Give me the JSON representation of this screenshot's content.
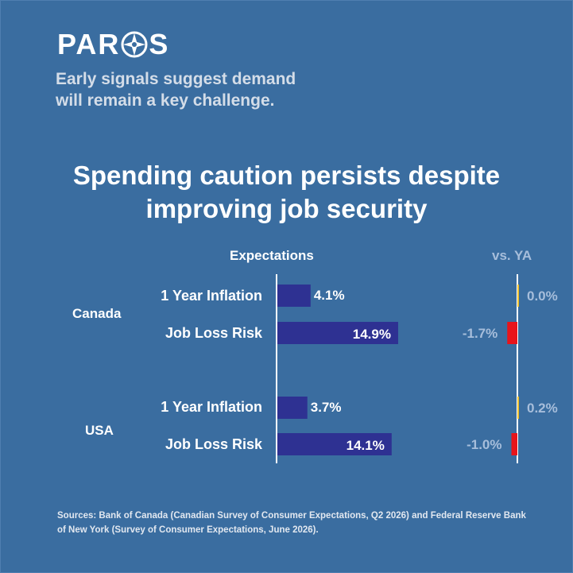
{
  "brand": {
    "name_left": "PAR",
    "name_right": "S",
    "logo_icon": "compass-icon"
  },
  "tagline": "Early signals suggest demand\nwill remain a key challenge.",
  "headline": "Spending caution persists despite\nimproving job security",
  "colors": {
    "background": "#3a6da0",
    "bar": "#2e3192",
    "negative_change": "#e8141b",
    "positive_change": "#f2c233",
    "axis": "#ffffff",
    "ya_text": "#a7bedb"
  },
  "chart_data": {
    "type": "bar",
    "orientation": "horizontal",
    "column_headers": {
      "expectations": "Expectations",
      "vs_ya": "vs. YA"
    },
    "groups": [
      {
        "name": "Canada",
        "rows": [
          {
            "label": "1 Year Inflation",
            "value": 4.1,
            "value_label": "4.1%",
            "change": 0.0,
            "change_label": "0.0%"
          },
          {
            "label": "Job Loss Risk",
            "value": 14.9,
            "value_label": "14.9%",
            "change": -1.7,
            "change_label": "-1.7%"
          }
        ]
      },
      {
        "name": "USA",
        "rows": [
          {
            "label": "1 Year Inflation",
            "value": 3.7,
            "value_label": "3.7%",
            "change": 0.2,
            "change_label": "0.2%"
          },
          {
            "label": "Job Loss Risk",
            "value": 14.1,
            "value_label": "14.1%",
            "change": -1.0,
            "change_label": "-1.0%"
          }
        ]
      }
    ],
    "value_range": [
      0,
      20
    ],
    "change_range": [
      -5,
      5
    ]
  },
  "sources": "Sources: Bank of Canada (Canadian Survey of Consumer Expectations, Q2 2026) and Federal Reserve Bank of New York (Survey of Consumer Expectations, June 2026)."
}
